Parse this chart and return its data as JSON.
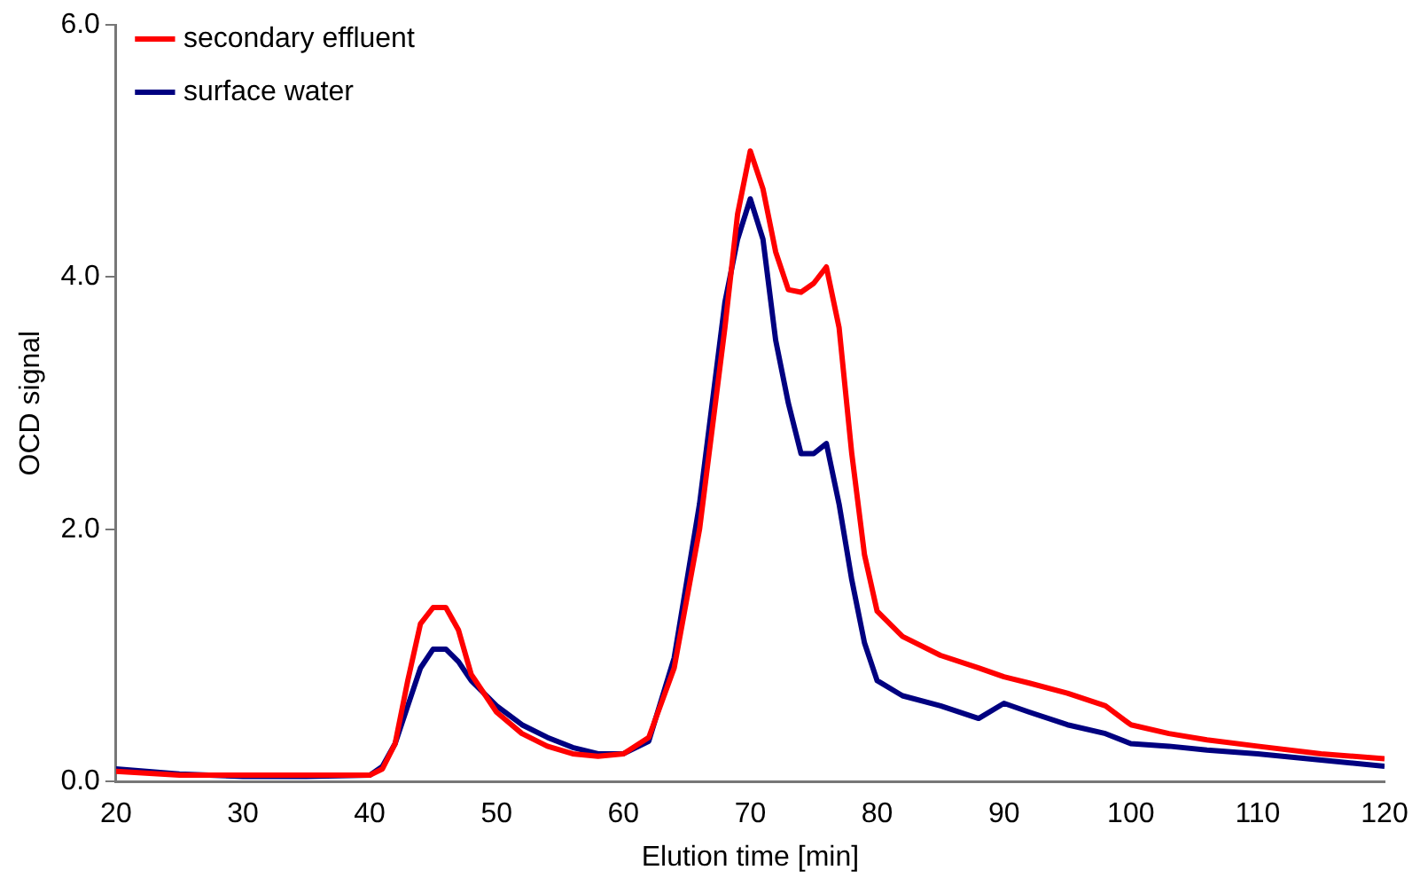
{
  "chart_data": {
    "type": "line",
    "xlabel": "Elution time [min]",
    "ylabel": "OCD signal",
    "xlim": [
      20,
      120
    ],
    "xticks": [
      20,
      30,
      40,
      50,
      60,
      70,
      80,
      90,
      100,
      110,
      120
    ],
    "ylim": [
      0,
      6
    ],
    "yticks": [
      {
        "value": 0,
        "label": "0.0"
      },
      {
        "value": 2,
        "label": "2.0"
      },
      {
        "value": 4,
        "label": "4.0"
      },
      {
        "value": 6,
        "label": "6.0"
      }
    ],
    "grid": false,
    "legend": "top left",
    "marker": "none",
    "line_style": "solid",
    "x": [
      20,
      25,
      30,
      35,
      40,
      41,
      42,
      43,
      44,
      45,
      46,
      47,
      48,
      50,
      52,
      54,
      56,
      58,
      60,
      62,
      64,
      66,
      67,
      68,
      69,
      70,
      71,
      72,
      73,
      74,
      75,
      76,
      77,
      78,
      79,
      80,
      82,
      85,
      88,
      90,
      92,
      95,
      98,
      100,
      103,
      106,
      110,
      115,
      120
    ],
    "series": [
      {
        "name": "secondary effluent",
        "color": "#ff0000",
        "values": [
          0.08,
          0.05,
          0.05,
          0.05,
          0.05,
          0.1,
          0.3,
          0.8,
          1.25,
          1.38,
          1.38,
          1.2,
          0.85,
          0.55,
          0.38,
          0.28,
          0.22,
          0.2,
          0.22,
          0.35,
          0.9,
          2.0,
          2.8,
          3.6,
          4.5,
          5.0,
          4.7,
          4.2,
          3.9,
          3.88,
          3.95,
          4.08,
          3.6,
          2.6,
          1.8,
          1.35,
          1.15,
          1.0,
          0.9,
          0.83,
          0.78,
          0.7,
          0.6,
          0.45,
          0.38,
          0.33,
          0.28,
          0.22,
          0.18
        ]
      },
      {
        "name": "surface water",
        "color": "#000080",
        "values": [
          0.1,
          0.06,
          0.04,
          0.04,
          0.05,
          0.12,
          0.3,
          0.6,
          0.9,
          1.05,
          1.05,
          0.95,
          0.8,
          0.6,
          0.45,
          0.35,
          0.27,
          0.22,
          0.22,
          0.32,
          0.98,
          2.2,
          3.0,
          3.8,
          4.3,
          4.62,
          4.3,
          3.5,
          3.0,
          2.6,
          2.6,
          2.68,
          2.2,
          1.6,
          1.1,
          0.8,
          0.68,
          0.6,
          0.5,
          0.62,
          0.55,
          0.45,
          0.38,
          0.3,
          0.28,
          0.25,
          0.22,
          0.17,
          0.12
        ]
      }
    ]
  }
}
